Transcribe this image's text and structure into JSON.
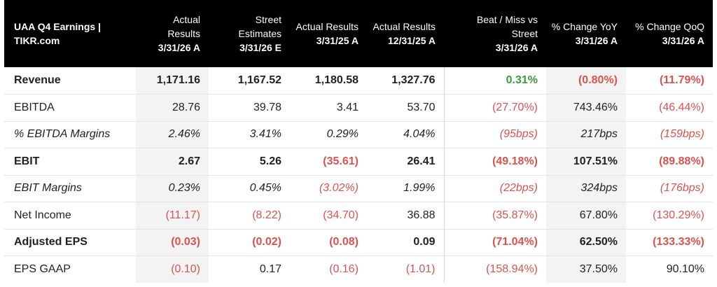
{
  "table": {
    "title": "UAA Q4 Earnings | TIKR.com",
    "columns": [
      {
        "label": "Actual Results",
        "date": "3/31/26 A"
      },
      {
        "label": "Street Estimates",
        "date": "3/31/26 E"
      },
      {
        "label": "Actual Results",
        "date": "3/31/25 A"
      },
      {
        "label": "Actual Results",
        "date": "12/31/25 A"
      },
      {
        "label": "Beat / Miss vs Street",
        "date": "3/31/26 A"
      },
      {
        "label": "% Change YoY",
        "date": "3/31/26 A"
      },
      {
        "label": "% Change QoQ",
        "date": "3/31/26 A"
      }
    ],
    "rows": [
      {
        "label": "Revenue",
        "style": "bold",
        "values": [
          "1,171.16",
          "1,167.52",
          "1,180.58",
          "1,327.76",
          "0.31%",
          "(0.80%)",
          "(11.79%)"
        ]
      },
      {
        "label": "EBITDA",
        "style": "normal",
        "values": [
          "28.76",
          "39.78",
          "3.41",
          "53.70",
          "(27.70%)",
          "743.46%",
          "(46.44%)"
        ]
      },
      {
        "label": "% EBITDA Margins",
        "style": "italic",
        "values": [
          "2.46%",
          "3.41%",
          "0.29%",
          "4.04%",
          "(95bps)",
          "217bps",
          "(159bps)"
        ]
      },
      {
        "label": "EBIT",
        "style": "bold",
        "values": [
          "2.67",
          "5.26",
          "(35.61)",
          "26.41",
          "(49.18%)",
          "107.51%",
          "(89.88%)"
        ]
      },
      {
        "label": "EBIT Margins",
        "style": "italic",
        "values": [
          "0.23%",
          "0.45%",
          "(3.02%)",
          "1.99%",
          "(22bps)",
          "324bps",
          "(176bps)"
        ]
      },
      {
        "label": "Net Income",
        "style": "normal",
        "values": [
          "(11.17)",
          "(8.22)",
          "(34.70)",
          "36.88",
          "(35.87%)",
          "67.80%",
          "(130.29%)"
        ]
      },
      {
        "label": "Adjusted EPS",
        "style": "bold",
        "values": [
          "(0.03)",
          "(0.02)",
          "(0.08)",
          "0.09",
          "(71.04%)",
          "62.50%",
          "(133.33%)"
        ]
      },
      {
        "label": "EPS GAAP",
        "style": "normal",
        "values": [
          "(0.10)",
          "0.17",
          "(0.16)",
          "(1.01)",
          "(158.94%)",
          "37.50%",
          "90.10%"
        ]
      }
    ]
  },
  "colors": {
    "header_bg": "#000000",
    "negative": "#d9534f",
    "positive": "#3c9a3c",
    "shade": "#f3f3f3"
  }
}
